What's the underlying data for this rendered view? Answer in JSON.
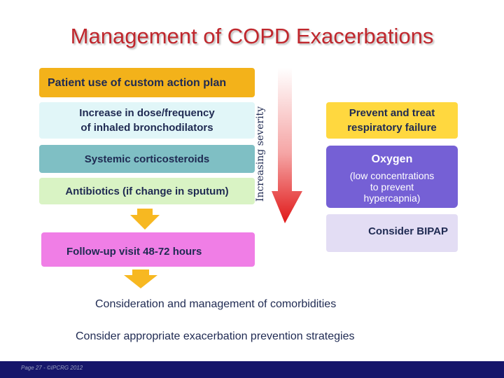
{
  "title": "Management of COPD Exacerbations",
  "left_column": {
    "plan": "Patient use of custom action plan",
    "dose": [
      "Increase in dose/frequency",
      "of inhaled bronchodilators"
    ],
    "corticosteroids": "Systemic corticosteroids",
    "antibiotics": "Antibiotics (if change in sputum)",
    "follow_up": "Follow-up visit 48-72 hours"
  },
  "severity_label": "Increasing severity",
  "right_column": {
    "prevent": [
      "Prevent and treat",
      "respiratory failure"
    ],
    "oxygen_title": "Oxygen",
    "oxygen_note": [
      "(low concentrations",
      "to prevent",
      "hypercapnia)"
    ],
    "bipap": "Consider BIPAP"
  },
  "notes": {
    "comorbidities": "Consideration and management of comorbidities",
    "prevention": "Consider appropriate exacerbation prevention strategies"
  },
  "footer": "Page 27 - ©IPCRG 2012",
  "colors": {
    "title": "#c0272d",
    "plan": "#f3b21a",
    "dose": "#e1f6f8",
    "corticosteroids": "#7fbfc4",
    "antibiotics": "#d9f3c4",
    "prevent": "#ffd83f",
    "oxygen": "#7560d5",
    "bipap": "#e3ddf4",
    "follow_up": "#f07ee6",
    "down_arrow": "#f7b821",
    "footer_bar": "#16166a"
  },
  "icons": [
    "severity-gradient-arrow-icon",
    "down-arrow-icon"
  ]
}
